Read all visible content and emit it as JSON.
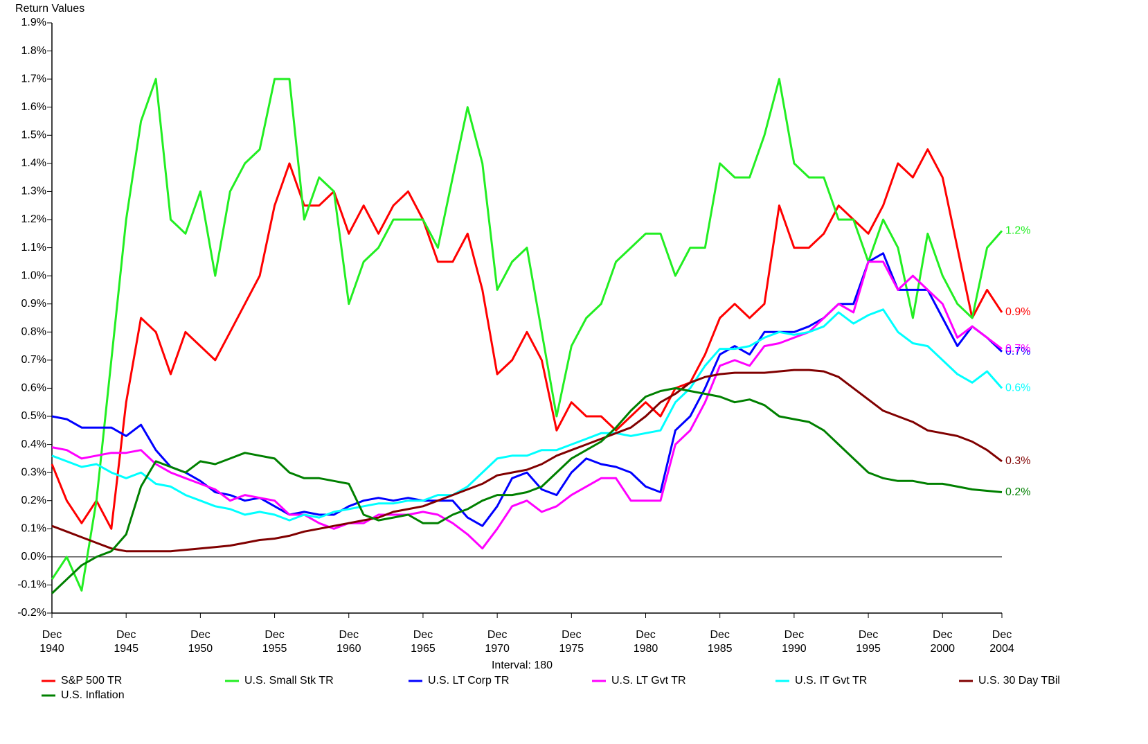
{
  "chart_data": {
    "type": "line",
    "y_label": "Return Values",
    "x_label": "Interval: 180",
    "x": [
      1940,
      1941,
      1942,
      1943,
      1944,
      1945,
      1946,
      1947,
      1948,
      1949,
      1950,
      1951,
      1952,
      1953,
      1954,
      1955,
      1956,
      1957,
      1958,
      1959,
      1960,
      1961,
      1962,
      1963,
      1964,
      1965,
      1966,
      1967,
      1968,
      1969,
      1970,
      1971,
      1972,
      1973,
      1974,
      1975,
      1976,
      1977,
      1978,
      1979,
      1980,
      1981,
      1982,
      1983,
      1984,
      1985,
      1986,
      1987,
      1988,
      1989,
      1990,
      1991,
      1992,
      1993,
      1994,
      1995,
      1996,
      1997,
      1998,
      1999,
      2000,
      2001,
      2002,
      2003,
      2004
    ],
    "xlim": [
      1940,
      2004
    ],
    "xticks": [
      {
        "value": 1940,
        "label": "Dec 1940"
      },
      {
        "value": 1945,
        "label": "Dec 1945"
      },
      {
        "value": 1950,
        "label": "Dec 1950"
      },
      {
        "value": 1955,
        "label": "Dec 1955"
      },
      {
        "value": 1960,
        "label": "Dec 1960"
      },
      {
        "value": 1965,
        "label": "Dec 1965"
      },
      {
        "value": 1970,
        "label": "Dec 1970"
      },
      {
        "value": 1975,
        "label": "Dec 1975"
      },
      {
        "value": 1980,
        "label": "Dec 1980"
      },
      {
        "value": 1985,
        "label": "Dec 1985"
      },
      {
        "value": 1990,
        "label": "Dec 1990"
      },
      {
        "value": 1995,
        "label": "Dec 1995"
      },
      {
        "value": 2000,
        "label": "Dec 2000"
      },
      {
        "value": 2004,
        "label": "Dec 2004"
      }
    ],
    "ylim": [
      -0.2,
      1.9
    ],
    "yticks": [
      {
        "value": -0.2,
        "label": "-0.2%"
      },
      {
        "value": -0.1,
        "label": "-0.1%"
      },
      {
        "value": 0,
        "label": "0.0%"
      },
      {
        "value": 0.1,
        "label": "0.1%"
      },
      {
        "value": 0.2,
        "label": "0.2%"
      },
      {
        "value": 0.3,
        "label": "0.3%"
      },
      {
        "value": 0.4,
        "label": "0.4%"
      },
      {
        "value": 0.5,
        "label": "0.5%"
      },
      {
        "value": 0.6,
        "label": "0.6%"
      },
      {
        "value": 0.7,
        "label": "0.7%"
      },
      {
        "value": 0.8,
        "label": "0.8%"
      },
      {
        "value": 0.9,
        "label": "0.9%"
      },
      {
        "value": 1.0,
        "label": "1.0%"
      },
      {
        "value": 1.1,
        "label": "1.1%"
      },
      {
        "value": 1.2,
        "label": "1.2%"
      },
      {
        "value": 1.3,
        "label": "1.3%"
      },
      {
        "value": 1.4,
        "label": "1.4%"
      },
      {
        "value": 1.5,
        "label": "1.5%"
      },
      {
        "value": 1.6,
        "label": "1.6%"
      },
      {
        "value": 1.7,
        "label": "1.7%"
      },
      {
        "value": 1.8,
        "label": "1.8%"
      },
      {
        "value": 1.9,
        "label": "1.9%"
      }
    ],
    "series": [
      {
        "name": "S&P 500 TR",
        "color": "#ff0000",
        "end_label": "0.9%",
        "values": [
          0.33,
          0.2,
          0.12,
          0.2,
          0.1,
          0.55,
          0.85,
          0.8,
          0.65,
          0.8,
          0.75,
          0.7,
          0.8,
          0.9,
          1.0,
          1.25,
          1.4,
          1.25,
          1.25,
          1.3,
          1.15,
          1.25,
          1.15,
          1.25,
          1.3,
          1.2,
          1.05,
          1.05,
          1.15,
          0.95,
          0.65,
          0.7,
          0.8,
          0.7,
          0.45,
          0.55,
          0.5,
          0.5,
          0.45,
          0.5,
          0.55,
          0.5,
          0.6,
          0.62,
          0.72,
          0.85,
          0.9,
          0.85,
          0.9,
          1.25,
          1.1,
          1.1,
          1.15,
          1.25,
          1.2,
          1.15,
          1.25,
          1.4,
          1.35,
          1.45,
          1.35,
          1.1,
          0.85,
          0.95,
          0.87
        ]
      },
      {
        "name": "U.S. Small Stk TR",
        "color": "#22ee22",
        "end_label": "1.2%",
        "values": [
          -0.08,
          0.0,
          -0.12,
          0.2,
          0.7,
          1.2,
          1.55,
          1.7,
          1.2,
          1.15,
          1.3,
          1.0,
          1.3,
          1.4,
          1.45,
          1.7,
          1.7,
          1.2,
          1.35,
          1.3,
          0.9,
          1.05,
          1.1,
          1.2,
          1.2,
          1.2,
          1.1,
          1.35,
          1.6,
          1.4,
          0.95,
          1.05,
          1.1,
          0.8,
          0.5,
          0.75,
          0.85,
          0.9,
          1.05,
          1.1,
          1.15,
          1.15,
          1.0,
          1.1,
          1.1,
          1.4,
          1.35,
          1.35,
          1.5,
          1.7,
          1.4,
          1.35,
          1.35,
          1.2,
          1.2,
          1.05,
          1.2,
          1.1,
          0.85,
          1.15,
          1.0,
          0.9,
          0.85,
          1.1,
          1.16
        ]
      },
      {
        "name": "U.S. LT Corp TR",
        "color": "#0000ff",
        "end_label": "0.7%",
        "values": [
          0.5,
          0.49,
          0.46,
          0.46,
          0.46,
          0.43,
          0.47,
          0.38,
          0.32,
          0.3,
          0.27,
          0.23,
          0.22,
          0.2,
          0.21,
          0.18,
          0.15,
          0.16,
          0.15,
          0.15,
          0.18,
          0.2,
          0.21,
          0.2,
          0.21,
          0.2,
          0.2,
          0.2,
          0.14,
          0.11,
          0.18,
          0.28,
          0.3,
          0.24,
          0.22,
          0.3,
          0.35,
          0.33,
          0.32,
          0.3,
          0.25,
          0.23,
          0.45,
          0.5,
          0.6,
          0.72,
          0.75,
          0.72,
          0.8,
          0.8,
          0.8,
          0.82,
          0.85,
          0.9,
          0.9,
          1.05,
          1.08,
          0.95,
          0.95,
          0.95,
          0.85,
          0.75,
          0.82,
          0.78,
          0.73
        ]
      },
      {
        "name": "U.S. LT Gvt TR",
        "color": "#ff00ff",
        "end_label": "0.7%",
        "values": [
          0.39,
          0.38,
          0.35,
          0.36,
          0.37,
          0.37,
          0.38,
          0.33,
          0.3,
          0.28,
          0.26,
          0.24,
          0.2,
          0.22,
          0.21,
          0.2,
          0.15,
          0.15,
          0.12,
          0.1,
          0.12,
          0.12,
          0.15,
          0.15,
          0.15,
          0.16,
          0.15,
          0.12,
          0.08,
          0.03,
          0.1,
          0.18,
          0.2,
          0.16,
          0.18,
          0.22,
          0.25,
          0.28,
          0.28,
          0.2,
          0.2,
          0.2,
          0.4,
          0.45,
          0.55,
          0.68,
          0.7,
          0.68,
          0.75,
          0.76,
          0.78,
          0.8,
          0.85,
          0.9,
          0.87,
          1.05,
          1.05,
          0.95,
          1.0,
          0.95,
          0.9,
          0.78,
          0.82,
          0.78,
          0.74
        ]
      },
      {
        "name": "U.S. IT Gvt TR",
        "color": "#00ffff",
        "end_label": "0.6%",
        "values": [
          0.36,
          0.34,
          0.32,
          0.33,
          0.3,
          0.28,
          0.3,
          0.26,
          0.25,
          0.22,
          0.2,
          0.18,
          0.17,
          0.15,
          0.16,
          0.15,
          0.13,
          0.15,
          0.14,
          0.16,
          0.17,
          0.18,
          0.19,
          0.19,
          0.2,
          0.2,
          0.22,
          0.22,
          0.25,
          0.3,
          0.35,
          0.36,
          0.36,
          0.38,
          0.38,
          0.4,
          0.42,
          0.44,
          0.44,
          0.43,
          0.44,
          0.45,
          0.55,
          0.6,
          0.68,
          0.74,
          0.74,
          0.75,
          0.78,
          0.8,
          0.79,
          0.8,
          0.82,
          0.87,
          0.83,
          0.86,
          0.88,
          0.8,
          0.76,
          0.75,
          0.7,
          0.65,
          0.62,
          0.66,
          0.6
        ]
      },
      {
        "name": "U.S. 30 Day TBil",
        "color": "#800000",
        "end_label": "0.3%",
        "values": [
          0.11,
          0.09,
          0.07,
          0.05,
          0.03,
          0.02,
          0.02,
          0.02,
          0.02,
          0.025,
          0.03,
          0.035,
          0.04,
          0.05,
          0.06,
          0.065,
          0.075,
          0.09,
          0.1,
          0.11,
          0.12,
          0.13,
          0.14,
          0.16,
          0.17,
          0.18,
          0.2,
          0.22,
          0.24,
          0.26,
          0.29,
          0.3,
          0.31,
          0.33,
          0.36,
          0.38,
          0.4,
          0.42,
          0.44,
          0.46,
          0.5,
          0.55,
          0.58,
          0.62,
          0.64,
          0.65,
          0.655,
          0.655,
          0.655,
          0.66,
          0.665,
          0.665,
          0.66,
          0.64,
          0.6,
          0.56,
          0.52,
          0.5,
          0.48,
          0.45,
          0.44,
          0.43,
          0.41,
          0.38,
          0.34
        ]
      },
      {
        "name": "U.S. Inflation",
        "color": "#008000",
        "end_label": "0.2%",
        "values": [
          -0.13,
          -0.08,
          -0.03,
          0.0,
          0.02,
          0.08,
          0.25,
          0.34,
          0.32,
          0.3,
          0.34,
          0.33,
          0.35,
          0.37,
          0.36,
          0.35,
          0.3,
          0.28,
          0.28,
          0.27,
          0.26,
          0.15,
          0.13,
          0.14,
          0.15,
          0.12,
          0.12,
          0.15,
          0.17,
          0.2,
          0.22,
          0.22,
          0.23,
          0.25,
          0.3,
          0.35,
          0.38,
          0.41,
          0.46,
          0.52,
          0.57,
          0.59,
          0.6,
          0.59,
          0.58,
          0.57,
          0.55,
          0.56,
          0.54,
          0.5,
          0.49,
          0.48,
          0.45,
          0.4,
          0.35,
          0.3,
          0.28,
          0.27,
          0.27,
          0.26,
          0.26,
          0.25,
          0.24,
          0.235,
          0.23
        ]
      }
    ]
  }
}
